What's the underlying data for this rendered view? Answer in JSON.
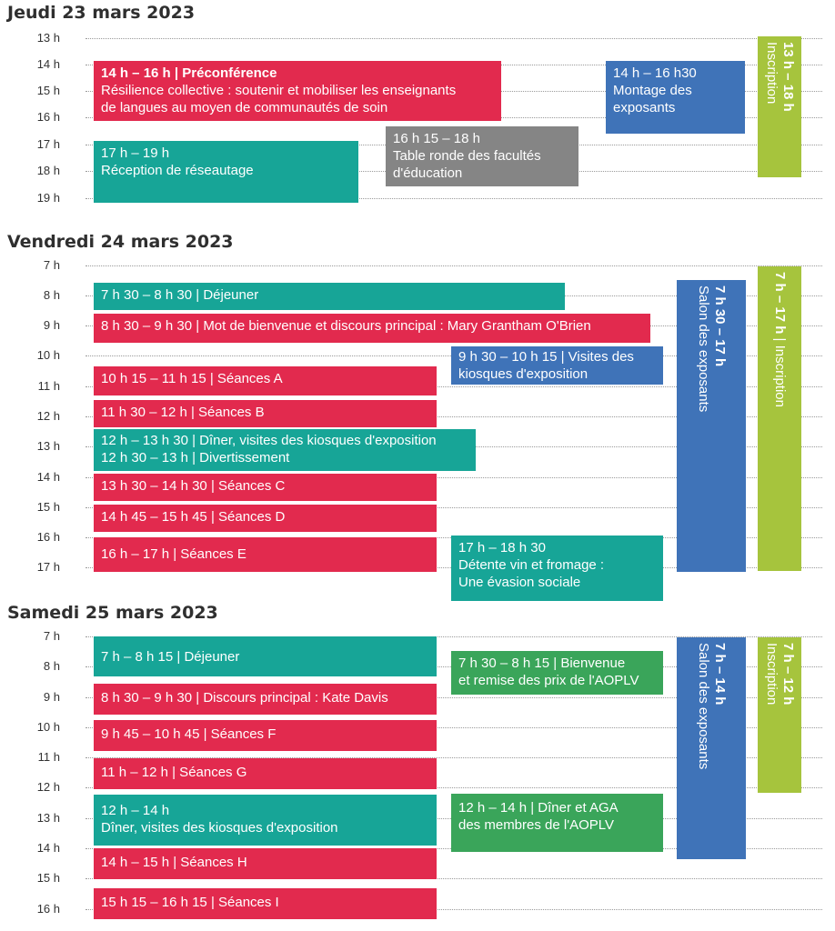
{
  "days": [
    {
      "title": "Jeudi 23 mars 2023",
      "hours": [
        "13 h",
        "14 h",
        "15 h",
        "16 h",
        "17 h",
        "18 h",
        "19 h"
      ],
      "events": [
        {
          "time": "14 h – 16 h",
          "sep": " | ",
          "label": "Préconférence",
          "lines": [
            "Résilience collective : soutenir et mobiliser les enseignants",
            "de langues au moyen de communautés de soin"
          ],
          "color": "#e22a4e"
        },
        {
          "time": "14 h – 16 h30",
          "lines": [
            "Montage des",
            "exposants"
          ],
          "color": "#3f73b8"
        },
        {
          "time": "16 h 15 – 18 h",
          "lines": [
            "Table ronde des facultés",
            "d'éducation"
          ],
          "color": "#858585"
        },
        {
          "time": "17 h – 19 h",
          "lines": [
            "Réception de réseautage"
          ],
          "color": "#17a597"
        }
      ],
      "columns": [
        {
          "time": "13 h – 18 h",
          "label": "Inscription",
          "color": "#a6c43d"
        }
      ]
    },
    {
      "title": "Vendredi 24 mars 2023",
      "hours": [
        "7 h",
        "8 h",
        "9 h",
        "10 h",
        "11 h",
        "12 h",
        "13 h",
        "14 h",
        "15 h",
        "16 h",
        "17 h"
      ],
      "events": [
        {
          "text": "7 h 30 – 8 h 30 | Déjeuner",
          "color": "#17a597"
        },
        {
          "text": "8 h 30 – 9 h 30 | Mot de bienvenue et discours principal : Mary Grantham O'Brien",
          "color": "#e22a4e"
        },
        {
          "lines": [
            "9 h 30 – 10 h 15 | Visites des",
            "kiosques d'exposition"
          ],
          "color": "#3f73b8"
        },
        {
          "text": "10 h 15 – 11 h 15 | Séances A",
          "color": "#e22a4e"
        },
        {
          "text": "11 h 30 – 12 h | Séances B",
          "color": "#e22a4e"
        },
        {
          "lines": [
            "12 h – 13 h 30 | Dîner, visites des kiosques d'exposition",
            "12 h 30 – 13 h | Divertissement"
          ],
          "color": "#17a597"
        },
        {
          "text": "13 h 30 – 14 h 30 | Séances C",
          "color": "#e22a4e"
        },
        {
          "text": "14 h 45 – 15 h 45 | Séances D",
          "color": "#e22a4e"
        },
        {
          "text": "16 h – 17 h | Séances E",
          "color": "#e22a4e"
        },
        {
          "time": "17 h – 18 h 30",
          "lines": [
            "Détente vin et fromage :",
            "Une évasion sociale"
          ],
          "color": "#17a597"
        }
      ],
      "columns": [
        {
          "time": "7 h 30 – 17 h",
          "label": "Salon des exposants",
          "color": "#3f73b8"
        },
        {
          "time": "7 h – 17 h",
          "sep": " | ",
          "label": "Inscription",
          "color": "#a6c43d"
        }
      ]
    },
    {
      "title": "Samedi 25 mars 2023",
      "hours": [
        "7 h",
        "8 h",
        "9 h",
        "10 h",
        "11 h",
        "12 h",
        "13 h",
        "14 h",
        "15 h",
        "16 h"
      ],
      "events": [
        {
          "text": "7 h – 8 h 15 | Déjeuner",
          "color": "#17a597"
        },
        {
          "lines": [
            "7 h 30 – 8 h 15 | Bienvenue",
            "et remise des prix de l'AOPLV"
          ],
          "color": "#3aa55a"
        },
        {
          "text": "8 h 30 – 9 h 30 | Discours principal : Kate Davis",
          "color": "#e22a4e"
        },
        {
          "text": "9 h 45 – 10 h 45 | Séances F",
          "color": "#e22a4e"
        },
        {
          "text": "11 h – 12 h | Séances G",
          "color": "#e22a4e"
        },
        {
          "time": "12 h – 14 h",
          "lines": [
            "Dîner, visites des kiosques d'exposition"
          ],
          "color": "#17a597"
        },
        {
          "lines": [
            "12 h – 14 h | Dîner et AGA",
            "des membres de l'AOPLV"
          ],
          "color": "#3aa55a"
        },
        {
          "text": "14 h – 15 h | Séances H",
          "color": "#e22a4e"
        },
        {
          "text": "15 h 15 – 16 h 15 | Séances I",
          "color": "#e22a4e"
        }
      ],
      "columns": [
        {
          "time": "7 h – 14 h",
          "label": "Salon des exposants",
          "color": "#3f73b8"
        },
        {
          "time": "7 h – 12 h",
          "label": "Inscription",
          "color": "#a6c43d"
        }
      ]
    }
  ]
}
